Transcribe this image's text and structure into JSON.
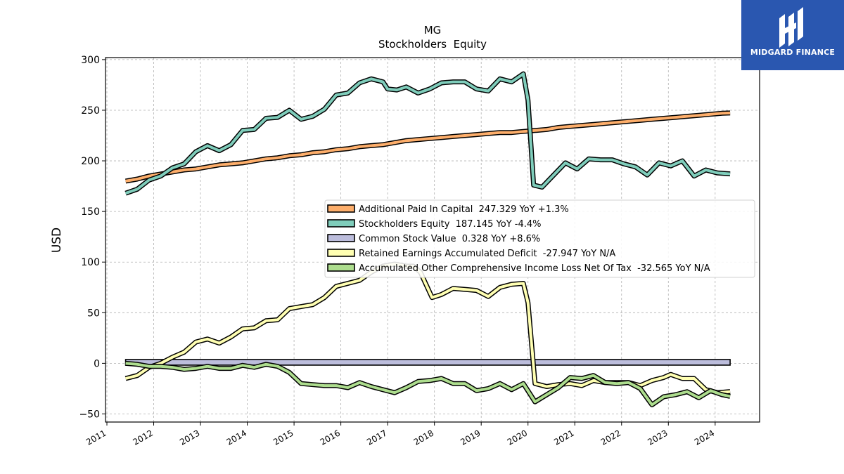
{
  "logo": {
    "text": "MIDGARD FINANCE",
    "color": "#2a57b0"
  },
  "chart_data": {
    "type": "line",
    "title": "MG",
    "subtitle": "Stockholders  Equity",
    "ylabel": "USD",
    "xlabel": "",
    "xlim": [
      2010.97,
      2024.95
    ],
    "ylim": [
      -58,
      302
    ],
    "yticks": [
      -50,
      0,
      50,
      100,
      150,
      200,
      250,
      300
    ],
    "ytick_labels": [
      "−50",
      "0",
      "50",
      "100",
      "150",
      "200",
      "250",
      "300"
    ],
    "xticks": [
      2011,
      2012,
      2013,
      2014,
      2015,
      2016,
      2017,
      2018,
      2019,
      2020,
      2021,
      2022,
      2023,
      2024
    ],
    "xtick_labels": [
      "2011",
      "2012",
      "2013",
      "2014",
      "2015",
      "2016",
      "2017",
      "2018",
      "2019",
      "2020",
      "2021",
      "2022",
      "2023",
      "2024"
    ],
    "grid": true,
    "legend_position": "center-right",
    "series": [
      {
        "name": "Additional Paid In Capital  247.329 YoY +1.3%",
        "color": "#fdae6b",
        "points": [
          [
            2011.4,
            180
          ],
          [
            2011.65,
            182
          ],
          [
            2011.9,
            185
          ],
          [
            2012.15,
            187
          ],
          [
            2012.4,
            189
          ],
          [
            2012.65,
            191
          ],
          [
            2012.9,
            192
          ],
          [
            2013.15,
            194
          ],
          [
            2013.4,
            196
          ],
          [
            2013.65,
            197
          ],
          [
            2013.9,
            198
          ],
          [
            2014.15,
            200
          ],
          [
            2014.4,
            202
          ],
          [
            2014.65,
            203
          ],
          [
            2014.9,
            205
          ],
          [
            2015.15,
            206
          ],
          [
            2015.4,
            208
          ],
          [
            2015.65,
            209
          ],
          [
            2015.9,
            211
          ],
          [
            2016.15,
            212
          ],
          [
            2016.4,
            214
          ],
          [
            2016.65,
            215
          ],
          [
            2016.9,
            216
          ],
          [
            2017.15,
            218
          ],
          [
            2017.4,
            220
          ],
          [
            2017.65,
            221
          ],
          [
            2017.9,
            222
          ],
          [
            2018.15,
            223
          ],
          [
            2018.4,
            224
          ],
          [
            2018.65,
            225
          ],
          [
            2018.9,
            226
          ],
          [
            2019.15,
            227
          ],
          [
            2019.4,
            228
          ],
          [
            2019.65,
            228
          ],
          [
            2019.9,
            229
          ],
          [
            2020.15,
            230
          ],
          [
            2020.4,
            231
          ],
          [
            2020.65,
            233
          ],
          [
            2020.9,
            234
          ],
          [
            2021.15,
            235
          ],
          [
            2021.4,
            236
          ],
          [
            2021.65,
            237
          ],
          [
            2021.9,
            238
          ],
          [
            2022.15,
            239
          ],
          [
            2022.4,
            240
          ],
          [
            2022.65,
            241
          ],
          [
            2022.9,
            242
          ],
          [
            2023.15,
            243
          ],
          [
            2023.4,
            244
          ],
          [
            2023.65,
            245
          ],
          [
            2023.9,
            246
          ],
          [
            2024.15,
            247
          ],
          [
            2024.32,
            247.3
          ]
        ]
      },
      {
        "name": "Stockholders Equity  187.145 YoY -4.4%",
        "color": "#7fcdbb",
        "points": [
          [
            2011.4,
            168
          ],
          [
            2011.65,
            172
          ],
          [
            2011.9,
            181
          ],
          [
            2012.15,
            185
          ],
          [
            2012.4,
            193
          ],
          [
            2012.65,
            197
          ],
          [
            2012.9,
            209
          ],
          [
            2013.15,
            215
          ],
          [
            2013.4,
            210
          ],
          [
            2013.65,
            216
          ],
          [
            2013.9,
            230
          ],
          [
            2014.15,
            231
          ],
          [
            2014.4,
            242
          ],
          [
            2014.65,
            243
          ],
          [
            2014.9,
            250
          ],
          [
            2015.15,
            241
          ],
          [
            2015.4,
            244
          ],
          [
            2015.65,
            251
          ],
          [
            2015.9,
            265
          ],
          [
            2016.15,
            267
          ],
          [
            2016.4,
            277
          ],
          [
            2016.65,
            281
          ],
          [
            2016.9,
            278
          ],
          [
            2017.0,
            271
          ],
          [
            2017.2,
            270
          ],
          [
            2017.4,
            273
          ],
          [
            2017.65,
            267
          ],
          [
            2017.9,
            271
          ],
          [
            2018.15,
            277
          ],
          [
            2018.4,
            278
          ],
          [
            2018.65,
            278
          ],
          [
            2018.9,
            271
          ],
          [
            2019.15,
            269
          ],
          [
            2019.4,
            281
          ],
          [
            2019.65,
            278
          ],
          [
            2019.9,
            286
          ],
          [
            2020.0,
            260
          ],
          [
            2020.12,
            176
          ],
          [
            2020.3,
            174
          ],
          [
            2020.55,
            186
          ],
          [
            2020.8,
            198
          ],
          [
            2021.05,
            192
          ],
          [
            2021.3,
            202
          ],
          [
            2021.55,
            201
          ],
          [
            2021.8,
            201
          ],
          [
            2022.05,
            197
          ],
          [
            2022.3,
            194
          ],
          [
            2022.55,
            186
          ],
          [
            2022.8,
            198
          ],
          [
            2023.05,
            195
          ],
          [
            2023.3,
            200
          ],
          [
            2023.55,
            185
          ],
          [
            2023.8,
            191
          ],
          [
            2024.05,
            188
          ],
          [
            2024.32,
            187.1
          ]
        ]
      },
      {
        "name": "Common Stock Value  0.328 YoY +8.6%",
        "color": "#bcbddc",
        "points": [
          [
            2011.4,
            0.25
          ],
          [
            2013,
            0.27
          ],
          [
            2015,
            0.28
          ],
          [
            2017,
            0.29
          ],
          [
            2019,
            0.3
          ],
          [
            2021,
            0.31
          ],
          [
            2023,
            0.32
          ],
          [
            2024.32,
            0.328
          ]
        ]
      },
      {
        "name": "Retained Earnings Accumulated Deficit  -27.947 YoY N/A",
        "color": "#ffffb2",
        "points": [
          [
            2011.4,
            -15
          ],
          [
            2011.65,
            -12
          ],
          [
            2011.9,
            -4
          ],
          [
            2012.15,
            0
          ],
          [
            2012.4,
            6
          ],
          [
            2012.65,
            11
          ],
          [
            2012.9,
            21
          ],
          [
            2013.15,
            24
          ],
          [
            2013.4,
            20
          ],
          [
            2013.65,
            26
          ],
          [
            2013.9,
            34
          ],
          [
            2014.15,
            35
          ],
          [
            2014.4,
            42
          ],
          [
            2014.65,
            43
          ],
          [
            2014.9,
            54
          ],
          [
            2015.15,
            56
          ],
          [
            2015.4,
            58
          ],
          [
            2015.65,
            65
          ],
          [
            2015.9,
            76
          ],
          [
            2016.15,
            79
          ],
          [
            2016.4,
            82
          ],
          [
            2016.65,
            90
          ],
          [
            2016.9,
            96
          ],
          [
            2017.15,
            98
          ],
          [
            2017.4,
            96
          ],
          [
            2017.55,
            96
          ],
          [
            2017.7,
            90
          ],
          [
            2017.95,
            65
          ],
          [
            2018.15,
            68
          ],
          [
            2018.4,
            74
          ],
          [
            2018.65,
            73
          ],
          [
            2018.9,
            72
          ],
          [
            2019.15,
            66
          ],
          [
            2019.4,
            75
          ],
          [
            2019.65,
            78
          ],
          [
            2019.9,
            79
          ],
          [
            2020.0,
            60
          ],
          [
            2020.15,
            -20
          ],
          [
            2020.4,
            -23
          ],
          [
            2020.65,
            -21
          ],
          [
            2020.9,
            -20
          ],
          [
            2021.15,
            -22
          ],
          [
            2021.4,
            -17
          ],
          [
            2021.65,
            -19
          ],
          [
            2021.9,
            -19
          ],
          [
            2022.15,
            -19
          ],
          [
            2022.4,
            -22
          ],
          [
            2022.65,
            -17
          ],
          [
            2022.9,
            -14
          ],
          [
            2023.05,
            -11
          ],
          [
            2023.3,
            -15
          ],
          [
            2023.55,
            -15
          ],
          [
            2023.8,
            -26
          ],
          [
            2024.05,
            -29
          ],
          [
            2024.32,
            -27.9
          ]
        ]
      },
      {
        "name": "Accumulated Other Comprehensive Income Loss Net Of Tax  -32.565 YoY N/A",
        "color": "#addd8e",
        "points": [
          [
            2011.4,
            0
          ],
          [
            2011.65,
            -1
          ],
          [
            2011.9,
            -3
          ],
          [
            2012.15,
            -3
          ],
          [
            2012.4,
            -4
          ],
          [
            2012.65,
            -6
          ],
          [
            2012.9,
            -5
          ],
          [
            2013.15,
            -3
          ],
          [
            2013.4,
            -5
          ],
          [
            2013.65,
            -5
          ],
          [
            2013.9,
            -2
          ],
          [
            2014.15,
            -4
          ],
          [
            2014.4,
            -1
          ],
          [
            2014.65,
            -3
          ],
          [
            2014.9,
            -9
          ],
          [
            2015.15,
            -20
          ],
          [
            2015.4,
            -21
          ],
          [
            2015.65,
            -22
          ],
          [
            2015.9,
            -22
          ],
          [
            2016.15,
            -24
          ],
          [
            2016.4,
            -19
          ],
          [
            2016.65,
            -23
          ],
          [
            2016.9,
            -26
          ],
          [
            2017.15,
            -29
          ],
          [
            2017.4,
            -24
          ],
          [
            2017.65,
            -18
          ],
          [
            2017.9,
            -17
          ],
          [
            2018.15,
            -15
          ],
          [
            2018.4,
            -20
          ],
          [
            2018.65,
            -20
          ],
          [
            2018.9,
            -27
          ],
          [
            2019.15,
            -25
          ],
          [
            2019.4,
            -20
          ],
          [
            2019.65,
            -26
          ],
          [
            2019.9,
            -20
          ],
          [
            2020.15,
            -38
          ],
          [
            2020.4,
            -31
          ],
          [
            2020.65,
            -24
          ],
          [
            2020.9,
            -14
          ],
          [
            2021.15,
            -15
          ],
          [
            2021.4,
            -12
          ],
          [
            2021.65,
            -19
          ],
          [
            2021.9,
            -20
          ],
          [
            2022.15,
            -19
          ],
          [
            2022.4,
            -25
          ],
          [
            2022.65,
            -41
          ],
          [
            2022.9,
            -33
          ],
          [
            2023.15,
            -31
          ],
          [
            2023.4,
            -28
          ],
          [
            2023.65,
            -34
          ],
          [
            2023.9,
            -27
          ],
          [
            2024.15,
            -31
          ],
          [
            2024.32,
            -32.6
          ]
        ]
      }
    ]
  }
}
